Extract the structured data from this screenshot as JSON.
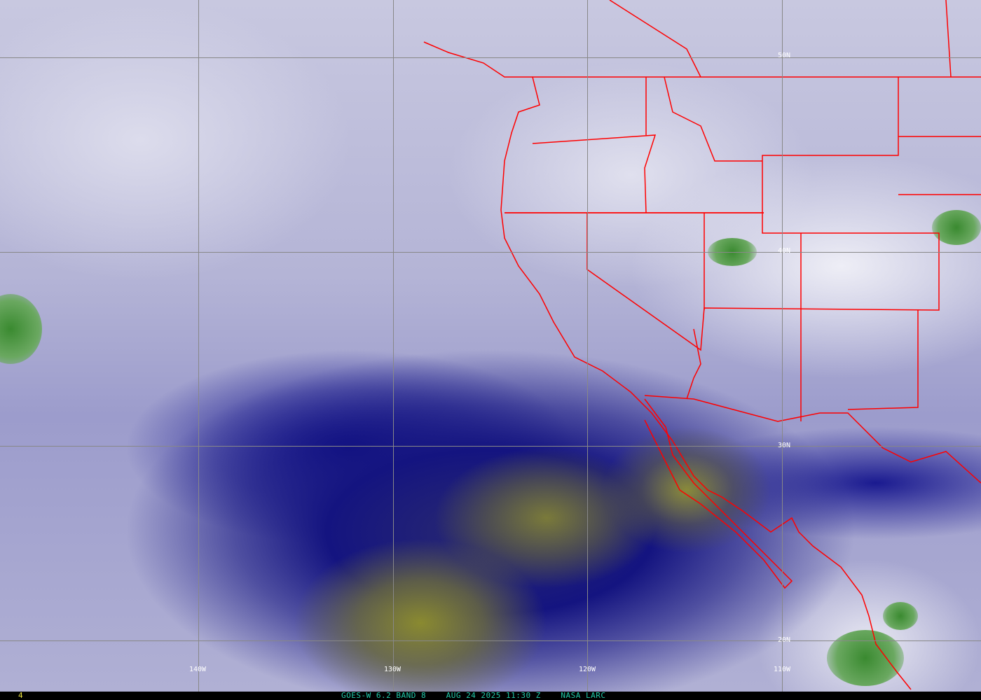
{
  "image": {
    "type": "satellite water vapor imagery",
    "caption": "GOES-W 6.2 BAND 8    AUG 24 2025 11:30 Z    NASA LARC",
    "frame_number": "4",
    "latitude_labels": [
      "50N",
      "40N",
      "30N",
      "20N"
    ],
    "longitude_labels": [
      "140W",
      "130W",
      "120W",
      "110W"
    ],
    "colors": {
      "boundary": "#ff0000",
      "grid": "#888888",
      "caption": "#20c8a8",
      "frame_number": "#e8e040",
      "moist": "#ffffff",
      "dry": "#10108a",
      "very_dry": "#8a8a30",
      "cold_cloud": "#3a8a30"
    }
  }
}
